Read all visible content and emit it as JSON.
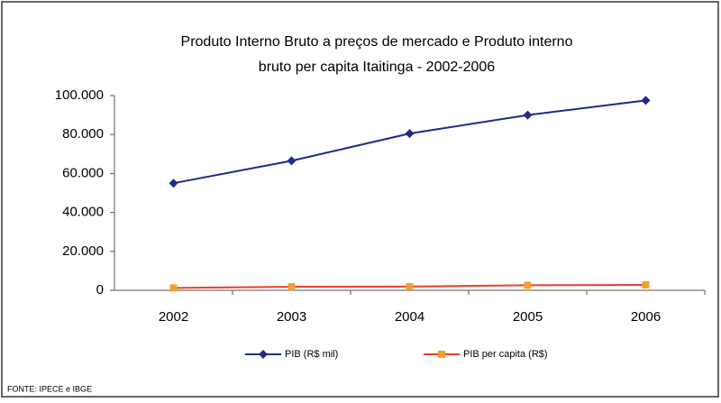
{
  "chart_data": {
    "type": "line",
    "title": [
      "Produto Interno Bruto a preços de mercado  e   Produto interno",
      "bruto per capita Itaitinga - 2002-2006"
    ],
    "categories": [
      "2002",
      "2003",
      "2004",
      "2005",
      "2006"
    ],
    "series": [
      {
        "name": "PIB (R$ mil)",
        "color": "#1f2a8a",
        "marker": "diamond",
        "values": [
          55000,
          66500,
          80500,
          90000,
          97500
        ]
      },
      {
        "name": "PIB per capita (R$)",
        "color": "#f5a030",
        "marker": "square",
        "values": [
          1200,
          1800,
          1900,
          2600,
          2800
        ]
      }
    ],
    "ylim": [
      0,
      100000
    ],
    "yticks": [
      {
        "value": 0,
        "label": "0"
      },
      {
        "value": 20000,
        "label": "20.000"
      },
      {
        "value": 40000,
        "label": "40.000"
      },
      {
        "value": 60000,
        "label": "60.000"
      },
      {
        "value": 80000,
        "label": "80.000"
      },
      {
        "value": 100000,
        "label": "100.000"
      }
    ],
    "legend": "bottom",
    "source": "FONTE: IPECE e IBGE"
  }
}
